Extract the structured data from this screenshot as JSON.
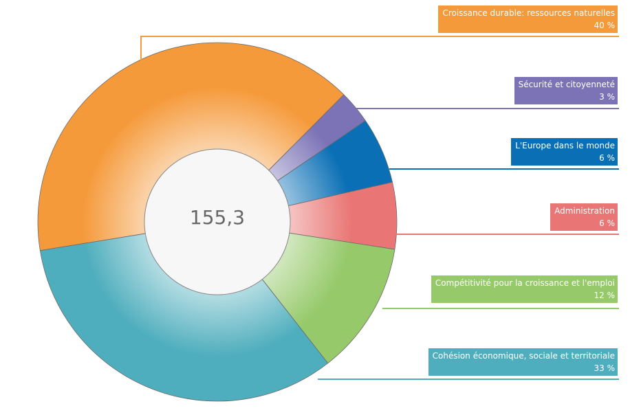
{
  "chart_data": {
    "type": "pie",
    "variant": "donut",
    "total_label": "155,3",
    "slices": [
      {
        "name": "Croissance durable: ressources naturelles",
        "value": 40,
        "value_label": "40 %",
        "color": "#f59a3b"
      },
      {
        "name": "Sécurité et citoyenneté",
        "value": 3,
        "value_label": "3 %",
        "color": "#7c73b6"
      },
      {
        "name": "L'Europe dans le monde",
        "value": 6,
        "value_label": "6 %",
        "color": "#0a6fb5"
      },
      {
        "name": "Administration",
        "value": 6,
        "value_label": "6 %",
        "color": "#e97674"
      },
      {
        "name": "Compétitivité pour la croissance et l'emploi",
        "value": 12,
        "value_label": "12 %",
        "color": "#95c96a"
      },
      {
        "name": "Cohésion économique, sociale et territoriale",
        "value": 33,
        "value_label": "33 %",
        "color": "#4faebd"
      }
    ]
  }
}
